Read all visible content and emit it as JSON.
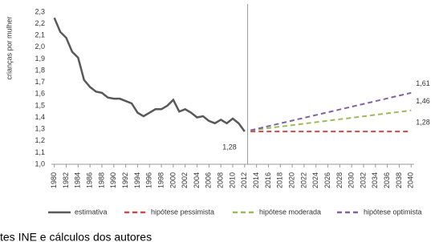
{
  "chart_data": {
    "type": "line",
    "y_label": "crianças por mulher",
    "series": [
      {
        "name": "estimativa",
        "color": "#595959",
        "dash": false,
        "x": [
          1980,
          1981,
          1982,
          1983,
          1984,
          1985,
          1986,
          1987,
          1988,
          1989,
          1990,
          1991,
          1992,
          1993,
          1994,
          1995,
          1996,
          1997,
          1998,
          1999,
          2000,
          2001,
          2002,
          2003,
          2004,
          2005,
          2006,
          2007,
          2008,
          2009,
          2010,
          2011,
          2012
        ],
        "values": [
          2.25,
          2.13,
          2.08,
          1.96,
          1.91,
          1.72,
          1.66,
          1.62,
          1.61,
          1.57,
          1.56,
          1.56,
          1.54,
          1.52,
          1.44,
          1.41,
          1.44,
          1.47,
          1.47,
          1.5,
          1.55,
          1.45,
          1.47,
          1.44,
          1.4,
          1.41,
          1.37,
          1.35,
          1.38,
          1.35,
          1.39,
          1.35,
          1.28
        ],
        "value_labels": [
          null,
          null,
          null,
          null,
          null,
          null,
          null,
          null,
          null,
          null,
          null,
          null,
          null,
          null,
          null,
          null,
          null,
          null,
          null,
          null,
          null,
          null,
          null,
          null,
          null,
          null,
          null,
          null,
          null,
          null,
          null,
          null,
          "1,28"
        ]
      },
      {
        "name": "hipótese pessimista",
        "color": "#d04848",
        "dash": true,
        "x": [
          2013,
          2040
        ],
        "values": [
          1.28,
          1.28
        ],
        "value_labels": [
          null,
          "1,28"
        ]
      },
      {
        "name": "hipótese moderada",
        "color": "#9bbb59",
        "dash": true,
        "x": [
          2013,
          2040
        ],
        "values": [
          1.29,
          1.46
        ],
        "value_labels": [
          null,
          "1,46"
        ]
      },
      {
        "name": "hipótese optimista",
        "color": "#8064a2",
        "dash": true,
        "x": [
          2013,
          2040
        ],
        "values": [
          1.29,
          1.61
        ],
        "value_labels": [
          null,
          "1,61"
        ]
      }
    ],
    "xlim": [
      1979.5,
      2040.5
    ],
    "xticks": [
      1980,
      1982,
      1984,
      1986,
      1988,
      1990,
      1992,
      1994,
      1996,
      1998,
      2000,
      2002,
      2004,
      2006,
      2008,
      2010,
      2012,
      2014,
      2016,
      2018,
      2020,
      2022,
      2024,
      2026,
      2028,
      2030,
      2032,
      2034,
      2036,
      2038,
      2040
    ],
    "ylim": [
      1.0,
      2.3
    ],
    "yticks": [
      {
        "value": 1.0,
        "label": "1,0"
      },
      {
        "value": 1.1,
        "label": "1,1"
      },
      {
        "value": 1.2,
        "label": "1,2"
      },
      {
        "value": 1.3,
        "label": "1,3"
      },
      {
        "value": 1.4,
        "label": "1,4"
      },
      {
        "value": 1.5,
        "label": "1,5"
      },
      {
        "value": 1.6,
        "label": "1,6"
      },
      {
        "value": 1.7,
        "label": "1,7"
      },
      {
        "value": 1.8,
        "label": "1,8"
      },
      {
        "value": 1.9,
        "label": "1,9"
      },
      {
        "value": 2.0,
        "label": "2,0"
      },
      {
        "value": 2.1,
        "label": "2,1"
      },
      {
        "value": 2.2,
        "label": "2,2"
      },
      {
        "value": 2.3,
        "label": "2,3"
      }
    ],
    "grid": false,
    "source": "tes INE e cálculos dos autores"
  }
}
